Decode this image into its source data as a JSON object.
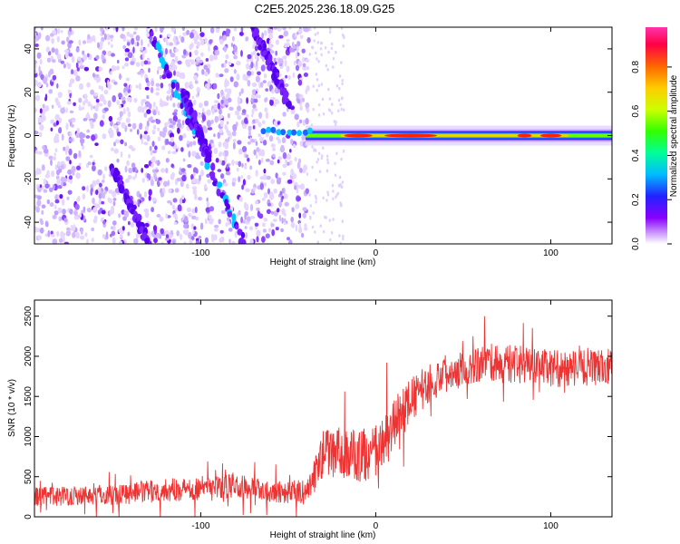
{
  "title": "C2E5.2025.236.18.09.G25",
  "chart_data": [
    {
      "type": "heatmap",
      "xlabel": "Height of straight line (km)",
      "ylabel": "Frequency (Hz)",
      "xlim": [
        -195,
        135
      ],
      "ylim": [
        -50,
        50
      ],
      "xticks": [
        -100,
        0,
        100
      ],
      "yticks": [
        -40,
        -20,
        0,
        20,
        40
      ],
      "grid": false,
      "colorbar": {
        "label": "Normalized spectral amplitude",
        "range": [
          0,
          0.98
        ],
        "ticks": [
          "0.0",
          "0.2",
          "0.4",
          "0.6",
          "0.8"
        ],
        "colors": [
          "#ffffff",
          "#cc99ff",
          "#8800ff",
          "#2222ff",
          "#00bbff",
          "#00ff99",
          "#33ff00",
          "#ccff00",
          "#ffcc00",
          "#ff6600",
          "#ff0044",
          "#ff33aa"
        ]
      },
      "features": [
        {
          "name": "noise",
          "x": [
            -195,
            -38
          ],
          "y": [
            -50,
            50
          ]
        },
        {
          "name": "streak",
          "x0": -130,
          "y0": 50,
          "x1": -75,
          "y1": -50
        },
        {
          "name": "streak",
          "x0": -150,
          "y0": -15,
          "x1": -130,
          "y1": -50
        },
        {
          "name": "streak",
          "x0": -70,
          "y0": 50,
          "x1": -50,
          "y1": 15
        },
        {
          "name": "streak",
          "x0": -110,
          "y0": 20,
          "x1": -95,
          "y1": -10
        },
        {
          "name": "carrier",
          "x": [
            -65,
            135
          ],
          "y": [
            0,
            0
          ],
          "peak": [
            -20,
            110
          ]
        }
      ]
    },
    {
      "type": "line",
      "xlabel": "Height of straight line (km)",
      "ylabel": "SNR (10 * v/v)",
      "xlim": [
        -195,
        135
      ],
      "ylim": [
        0,
        2700
      ],
      "xticks": [
        -100,
        0,
        100
      ],
      "yticks": [
        0,
        500,
        1000,
        1500,
        2000,
        2500
      ],
      "color": "#ee3333",
      "grid": false,
      "trend": [
        {
          "x": -195,
          "y": 250
        },
        {
          "x": -150,
          "y": 280
        },
        {
          "x": -120,
          "y": 330
        },
        {
          "x": -100,
          "y": 360
        },
        {
          "x": -80,
          "y": 380
        },
        {
          "x": -60,
          "y": 330
        },
        {
          "x": -40,
          "y": 300
        },
        {
          "x": -35,
          "y": 500
        },
        {
          "x": -30,
          "y": 800
        },
        {
          "x": -20,
          "y": 800
        },
        {
          "x": -10,
          "y": 750
        },
        {
          "x": 0,
          "y": 800
        },
        {
          "x": 5,
          "y": 900
        },
        {
          "x": 10,
          "y": 1150
        },
        {
          "x": 20,
          "y": 1450
        },
        {
          "x": 30,
          "y": 1650
        },
        {
          "x": 40,
          "y": 1800
        },
        {
          "x": 60,
          "y": 1920
        },
        {
          "x": 80,
          "y": 1900
        },
        {
          "x": 100,
          "y": 1850
        },
        {
          "x": 120,
          "y": 1850
        },
        {
          "x": 135,
          "y": 1870
        }
      ],
      "band_halfwidth": [
        {
          "x": -195,
          "y": 120
        },
        {
          "x": -100,
          "y": 150
        },
        {
          "x": -40,
          "y": 150
        },
        {
          "x": -30,
          "y": 300
        },
        {
          "x": 0,
          "y": 350
        },
        {
          "x": 30,
          "y": 250
        },
        {
          "x": 135,
          "y": 230
        }
      ]
    }
  ]
}
